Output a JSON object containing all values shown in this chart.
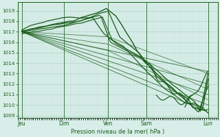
{
  "bg_color": "#d8eee8",
  "line_color": "#1a5c1a",
  "grid_color_major": "#b0d4cc",
  "grid_color_minor": "#c4dfd8",
  "tick_color": "#1a5c1a",
  "ylim": [
    1008.8,
    1019.8
  ],
  "yticks": [
    1009,
    1010,
    1011,
    1012,
    1013,
    1014,
    1015,
    1016,
    1017,
    1018,
    1019
  ],
  "xtick_labels": [
    "Jeu",
    "Dim",
    "Ven",
    "Sam",
    "Lun"
  ],
  "xtick_positions": [
    0.0,
    0.22,
    0.45,
    0.65,
    0.97
  ],
  "xlabel": "Pression niveau de la mer( hPa )",
  "xlim": [
    -0.02,
    1.02
  ]
}
